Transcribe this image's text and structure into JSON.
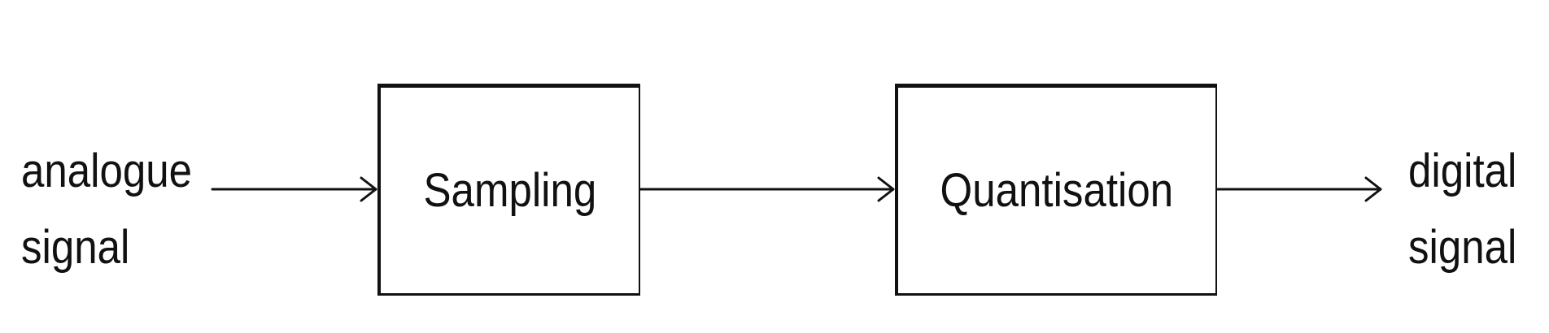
{
  "diagram": {
    "input": {
      "line1": "analogue",
      "line2": "signal"
    },
    "blocks": [
      {
        "label": "Sampling"
      },
      {
        "label": "Quantisation"
      }
    ],
    "output": {
      "line1": "digital",
      "line2": "signal"
    }
  }
}
